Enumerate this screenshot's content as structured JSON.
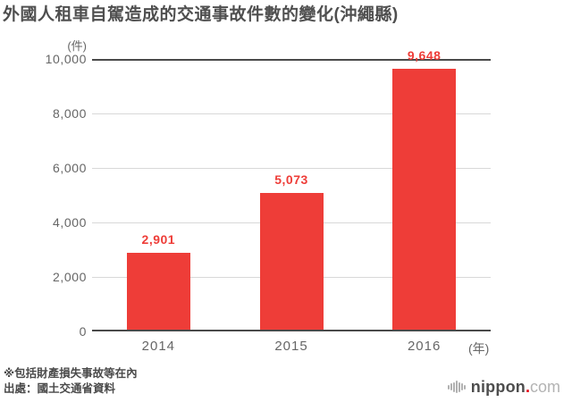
{
  "title": "外國人租車自駕造成的交通事故件數的變化(沖繩縣)",
  "chart_data": {
    "type": "bar",
    "title": "外國人租車自駕造成的交通事故件數的變化(沖繩縣)",
    "categories": [
      "2014",
      "2015",
      "2016"
    ],
    "values": [
      2901,
      5073,
      9648
    ],
    "value_labels": [
      "2,901",
      "5,073",
      "9,648"
    ],
    "unit_y": "(件)",
    "unit_x": "(年)",
    "ylim": [
      0,
      10000
    ],
    "ytick_interval": 2000,
    "yticks": [
      "0",
      "2,000",
      "4,000",
      "6,000",
      "8,000",
      "10,000"
    ],
    "grid": "horizontal",
    "legend": "none",
    "bar_color": "#ee3d38",
    "value_label_color": "#ee3d38"
  },
  "colors": {
    "bar_red": "#ee3d38",
    "gridline_light": "#d8d8d8",
    "axis_dark": "#4a4a4a",
    "axis_text": "#666666",
    "title_text": "#4f4f4f",
    "logo_dot_red": "#e60012"
  },
  "footnotes": [
    "※包括財產損失事故等在內",
    "出處：國土交通省資料"
  ],
  "logo": {
    "icon": "nippon-logo-mark-icon",
    "name": "nippon",
    "dot": ".",
    "tld": "com"
  }
}
